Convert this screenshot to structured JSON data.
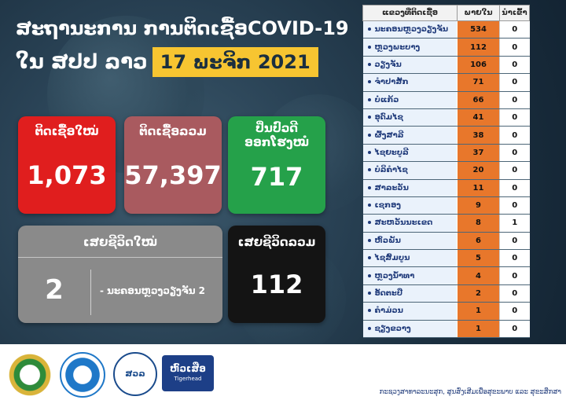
{
  "header": {
    "title_line1": "ສະຖານະການ ການຕິດເຊື້ອCOVID-19",
    "title_line2": "ໃນ ສປປ ລາວ",
    "date": "17 ພະຈິກ 2021"
  },
  "stats": {
    "new_cases": {
      "label": "ຕິດເຊື້ອໃໝ່",
      "value": "1,073",
      "color": "#e01e1e"
    },
    "total_cases": {
      "label": "ຕິດເຊື້ອລວມ",
      "value": "57,397",
      "color": "#a95a5f"
    },
    "recovered": {
      "label_line1": "ປິ່ນປົວດີ",
      "label_line2": "ອອກໂຮງໝໍ",
      "value": "717",
      "color": "#25a14a"
    },
    "new_deaths": {
      "label": "ເສຍຊີວິດໃໝ່",
      "value": "2",
      "detail": "- ນະຄອນຫຼວງວຽງຈັນ   2",
      "color": "#8a8a8a"
    },
    "total_deaths": {
      "label": "ເສຍຊີວິດລວມ",
      "value": "112",
      "color": "#141414"
    }
  },
  "province_table": {
    "headers": {
      "province": "ແຂວງທີ່ຕິດເຊື້ອ",
      "local": "ພາຍໃນ",
      "imported": "ນຳເຂົ້າ"
    },
    "rows": [
      {
        "province": "ນະຄອນຫຼວງວຽງຈັນ",
        "local": "534",
        "imported": "0"
      },
      {
        "province": "ຫຼວງພະບາງ",
        "local": "112",
        "imported": "0"
      },
      {
        "province": "ວຽງຈັນ",
        "local": "106",
        "imported": "0"
      },
      {
        "province": "ຈຳປາສັກ",
        "local": "71",
        "imported": "0"
      },
      {
        "province": "ບໍ່ແກ້ວ",
        "local": "66",
        "imported": "0"
      },
      {
        "province": "ອຸດົມໄຊ",
        "local": "41",
        "imported": "0"
      },
      {
        "province": "ຜົ້ງສາລີ",
        "local": "38",
        "imported": "0"
      },
      {
        "province": "ໄຊຍະບູລີ",
        "local": "37",
        "imported": "0"
      },
      {
        "province": "ບໍລິຄຳໄຊ",
        "local": "20",
        "imported": "0"
      },
      {
        "province": "ສາລະວັນ",
        "local": "11",
        "imported": "0"
      },
      {
        "province": "ເຊກອງ",
        "local": "9",
        "imported": "0"
      },
      {
        "province": "ສະຫວັນນະເຂດ",
        "local": "8",
        "imported": "1"
      },
      {
        "province": "ຫົວພັນ",
        "local": "6",
        "imported": "0"
      },
      {
        "province": "ໄຊສົມບູນ",
        "local": "5",
        "imported": "0"
      },
      {
        "province": "ຫຼວງນ້ຳທາ",
        "local": "4",
        "imported": "0"
      },
      {
        "province": "ອັດຕະປື",
        "local": "2",
        "imported": "0"
      },
      {
        "province": "ຄຳມ່ວນ",
        "local": "1",
        "imported": "0"
      },
      {
        "province": "ຊຽງຂວາງ",
        "local": "1",
        "imported": "0"
      }
    ]
  },
  "footer": {
    "logo_ncle": "ສວລ",
    "logo_tigerhead_main": "ຫົວເສືອ",
    "logo_tigerhead_sub": "Tigerhead",
    "credit": "ກະຊວງສາທາລະນະສຸກ, ສູນສົ່ງເສີມເພື່ອສຸຂະພາບ ແລະ ສຸຂະສຶກສາ"
  }
}
